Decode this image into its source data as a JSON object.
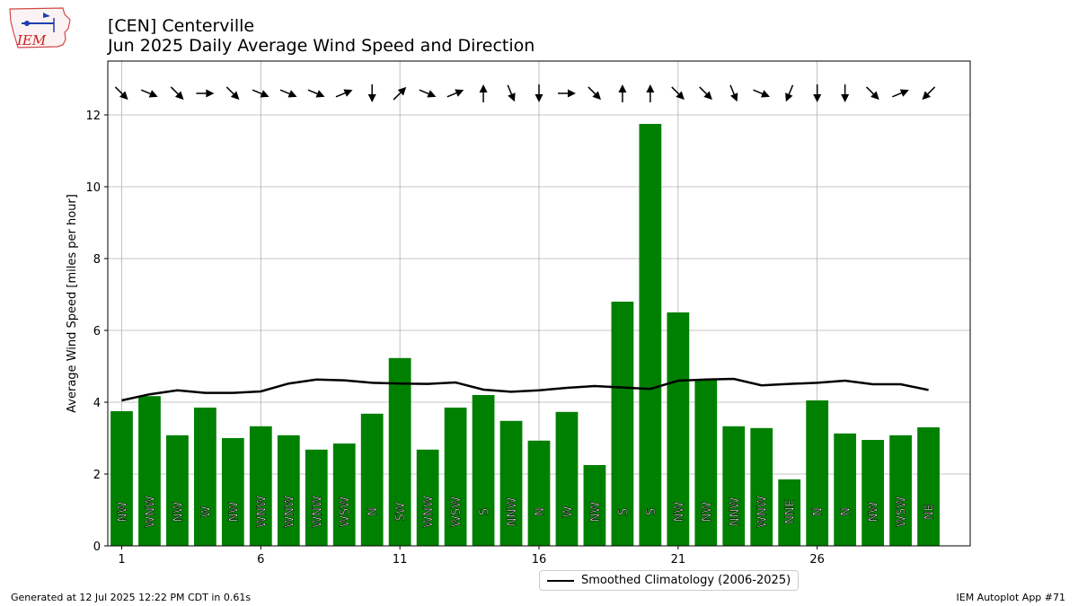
{
  "header": {
    "title_line1": "[CEN] Centerville",
    "title_line2": "Jun 2025 Daily Average Wind Speed and Direction"
  },
  "footer": {
    "generated": "Generated at 12 Jul 2025 12:22 PM CDT in 0.61s",
    "app": "IEM Autoplot App #71"
  },
  "logo": {
    "text": "IEM",
    "icon": "iem-iowa-logo"
  },
  "colors": {
    "bar": "#008000",
    "climatology": "#000000",
    "grid": "#b0b0b0"
  },
  "chart_data": {
    "type": "bar",
    "title": "[CEN] Centerville",
    "subtitle": "Jun 2025 Daily Average Wind Speed and Direction",
    "xlabel": "",
    "ylabel": "Average Wind Speed [miles per hour]",
    "ylim": [
      0,
      13.5
    ],
    "xlim": [
      0.5,
      31.5
    ],
    "xticks": [
      1,
      6,
      11,
      16,
      21,
      26
    ],
    "yticks": [
      0,
      2,
      4,
      6,
      8,
      10,
      12
    ],
    "grid": true,
    "legend_position": "bottom-center",
    "days": [
      1,
      2,
      3,
      4,
      5,
      6,
      7,
      8,
      9,
      10,
      11,
      12,
      13,
      14,
      15,
      16,
      17,
      18,
      19,
      20,
      21,
      22,
      23,
      24,
      25,
      26,
      27,
      28,
      29,
      30
    ],
    "speeds": [
      3.75,
      4.17,
      3.08,
      3.85,
      3.0,
      3.33,
      3.08,
      2.68,
      2.85,
      3.68,
      5.23,
      2.68,
      3.85,
      4.2,
      3.48,
      2.93,
      3.73,
      2.25,
      6.8,
      11.75,
      6.5,
      4.65,
      3.33,
      3.28,
      1.85,
      4.05,
      3.13,
      2.95,
      3.08,
      3.3
    ],
    "directions": [
      "NW",
      "WNW",
      "NW",
      "W",
      "NW",
      "WNW",
      "WNW",
      "WNW",
      "WSW",
      "N",
      "SW",
      "WNW",
      "WSW",
      "S",
      "NNW",
      "N",
      "W",
      "NW",
      "S",
      "S",
      "NW",
      "NW",
      "NNW",
      "WNW",
      "NNE",
      "N",
      "N",
      "NW",
      "WSW",
      "NE"
    ],
    "climatology": {
      "name": "Smoothed Climatology (2006-2025)",
      "values": [
        4.05,
        4.22,
        4.33,
        4.26,
        4.26,
        4.3,
        4.52,
        4.63,
        4.61,
        4.54,
        4.52,
        4.51,
        4.55,
        4.35,
        4.29,
        4.33,
        4.4,
        4.45,
        4.41,
        4.37,
        4.6,
        4.63,
        4.65,
        4.47,
        4.51,
        4.54,
        4.6,
        4.5,
        4.5,
        4.34
      ]
    },
    "series": [
      {
        "name": "",
        "type": "bar",
        "values": [
          3.75,
          4.17,
          3.08,
          3.85,
          3.0,
          3.33,
          3.08,
          2.68,
          2.85,
          3.68,
          5.23,
          2.68,
          3.85,
          4.2,
          3.48,
          2.93,
          3.73,
          2.25,
          6.8,
          11.75,
          6.5,
          4.65,
          3.33,
          3.28,
          1.85,
          4.05,
          3.13,
          2.95,
          3.08,
          3.3
        ]
      },
      {
        "name": "Smoothed Climatology (2006-2025)",
        "type": "line",
        "values": [
          4.05,
          4.22,
          4.33,
          4.26,
          4.26,
          4.3,
          4.52,
          4.63,
          4.61,
          4.54,
          4.52,
          4.51,
          4.55,
          4.35,
          4.29,
          4.33,
          4.4,
          4.45,
          4.41,
          4.37,
          4.6,
          4.63,
          4.65,
          4.47,
          4.51,
          4.54,
          4.6,
          4.5,
          4.5,
          4.34
        ]
      }
    ],
    "wind_arrow_speed_mph": 12.6
  }
}
